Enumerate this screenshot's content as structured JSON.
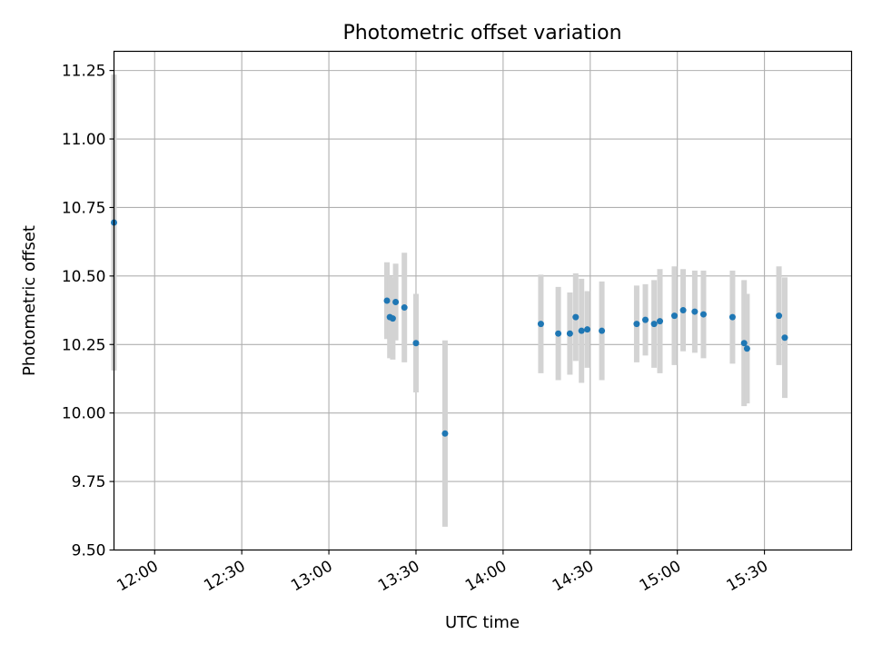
{
  "chart_data": {
    "type": "scatter",
    "title": "Photometric offset variation",
    "xlabel": "UTC time",
    "ylabel": "Photometric offset",
    "x_tick_labels": [
      "12:00",
      "12:30",
      "13:00",
      "13:30",
      "14:00",
      "14:30",
      "15:00",
      "15:30"
    ],
    "y_tick_labels": [
      "9.50",
      "9.75",
      "10.00",
      "10.25",
      "10.50",
      "10.75",
      "11.00",
      "11.25"
    ],
    "xlim": [
      "11:46",
      "16:00"
    ],
    "ylim": [
      9.5,
      11.32
    ],
    "grid": true,
    "series": [
      {
        "marker_color": "#1f77b4",
        "errorbar_color": "#d3d3d3",
        "points": [
          {
            "x": "11:46",
            "y": 10.695,
            "yerr": 0.54
          },
          {
            "x": "13:20",
            "y": 10.41,
            "yerr": 0.14
          },
          {
            "x": "13:21",
            "y": 10.35,
            "yerr": 0.15
          },
          {
            "x": "13:22",
            "y": 10.345,
            "yerr": 0.15
          },
          {
            "x": "13:23",
            "y": 10.405,
            "yerr": 0.14
          },
          {
            "x": "13:26",
            "y": 10.385,
            "yerr": 0.2
          },
          {
            "x": "13:30",
            "y": 10.255,
            "yerr": 0.18
          },
          {
            "x": "13:40",
            "y": 9.925,
            "yerr": 0.34
          },
          {
            "x": "14:13",
            "y": 10.325,
            "yerr": 0.18
          },
          {
            "x": "14:19",
            "y": 10.29,
            "yerr": 0.17
          },
          {
            "x": "14:23",
            "y": 10.29,
            "yerr": 0.15
          },
          {
            "x": "14:25",
            "y": 10.35,
            "yerr": 0.16
          },
          {
            "x": "14:27",
            "y": 10.3,
            "yerr": 0.19
          },
          {
            "x": "14:29",
            "y": 10.305,
            "yerr": 0.14
          },
          {
            "x": "14:34",
            "y": 10.3,
            "yerr": 0.18
          },
          {
            "x": "14:46",
            "y": 10.325,
            "yerr": 0.14
          },
          {
            "x": "14:49",
            "y": 10.34,
            "yerr": 0.13
          },
          {
            "x": "14:52",
            "y": 10.325,
            "yerr": 0.16
          },
          {
            "x": "14:54",
            "y": 10.335,
            "yerr": 0.19
          },
          {
            "x": "14:59",
            "y": 10.355,
            "yerr": 0.18
          },
          {
            "x": "15:02",
            "y": 10.375,
            "yerr": 0.15
          },
          {
            "x": "15:06",
            "y": 10.37,
            "yerr": 0.15
          },
          {
            "x": "15:09",
            "y": 10.36,
            "yerr": 0.16
          },
          {
            "x": "15:19",
            "y": 10.35,
            "yerr": 0.17
          },
          {
            "x": "15:23",
            "y": 10.255,
            "yerr": 0.23
          },
          {
            "x": "15:24",
            "y": 10.235,
            "yerr": 0.2
          },
          {
            "x": "15:35",
            "y": 10.355,
            "yerr": 0.18
          },
          {
            "x": "15:37",
            "y": 10.275,
            "yerr": 0.22
          }
        ]
      }
    ]
  }
}
